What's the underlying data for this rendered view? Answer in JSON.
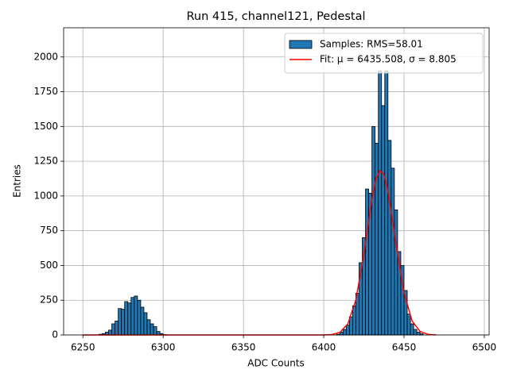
{
  "chart_data": {
    "type": "histogram",
    "title": "Run 415, channel121, Pedestal",
    "xlabel": "ADC Counts",
    "ylabel": "Entries",
    "name": "Samples: RMS=58.01",
    "color": "#1f77b4",
    "edgecolor": "#000000",
    "bins": [
      6260,
      6262,
      6264,
      6266,
      6268,
      6270,
      6272,
      6274,
      6276,
      6278,
      6280,
      6282,
      6284,
      6286,
      6288,
      6290,
      6292,
      6294,
      6296,
      6298,
      6300,
      6302,
      6304,
      6306,
      6308,
      6310,
      6312,
      6314,
      6316,
      6318,
      6320,
      6322,
      6324,
      6326,
      6328,
      6330,
      6332,
      6334,
      6336,
      6338,
      6340,
      6342,
      6344,
      6346,
      6348,
      6350,
      6352,
      6354,
      6356,
      6358,
      6360,
      6362,
      6364,
      6366,
      6368,
      6370,
      6372,
      6374,
      6376,
      6378,
      6380,
      6382,
      6384,
      6386,
      6388,
      6390,
      6392,
      6394,
      6396,
      6398,
      6400,
      6402,
      6404,
      6406,
      6408,
      6410,
      6412,
      6414,
      6416,
      6418,
      6420,
      6422,
      6424,
      6426,
      6428,
      6430,
      6432,
      6434,
      6436,
      6438,
      6440,
      6442,
      6444,
      6446,
      6448,
      6450,
      6452,
      6454,
      6456,
      6458,
      6460,
      6462
    ],
    "values": [
      5,
      10,
      20,
      35,
      80,
      100,
      190,
      185,
      240,
      230,
      270,
      280,
      250,
      200,
      160,
      110,
      80,
      60,
      25,
      10,
      3,
      0,
      0,
      0,
      0,
      0,
      0,
      0,
      0,
      0,
      0,
      0,
      0,
      0,
      0,
      0,
      0,
      0,
      0,
      0,
      0,
      0,
      0,
      0,
      0,
      0,
      0,
      0,
      0,
      0,
      0,
      0,
      0,
      0,
      0,
      0,
      0,
      0,
      0,
      0,
      0,
      0,
      0,
      0,
      0,
      0,
      0,
      0,
      0,
      0,
      0,
      0,
      0,
      0,
      5,
      20,
      40,
      70,
      130,
      210,
      300,
      520,
      700,
      1050,
      1020,
      1500,
      1380,
      1900,
      1650,
      1900,
      1400,
      1200,
      900,
      600,
      500,
      320,
      150,
      80,
      40,
      20,
      8
    ],
    "lines": [
      {
        "name": "Fit: μ = 6435.508, σ = 8.805",
        "color": "#ff0000",
        "x": [
          6250,
          6300,
          6400,
          6405,
          6410,
          6415,
          6420,
          6425,
          6430,
          6432.5,
          6435,
          6437.5,
          6440,
          6445,
          6450,
          6455,
          6460,
          6465,
          6470
        ],
        "values": [
          0,
          0,
          0.35,
          3,
          18,
          79,
          251,
          581,
          974,
          1118,
          1183,
          1155,
          1040,
          662,
          305,
          102,
          25,
          4,
          1
        ]
      }
    ],
    "xlim": [
      6238,
      6503
    ],
    "ylim": [
      0,
      2210
    ],
    "xticks": [
      6250,
      6300,
      6350,
      6400,
      6450,
      6500
    ],
    "yticks": [
      0,
      250,
      500,
      750,
      1000,
      1250,
      1500,
      1750,
      2000
    ],
    "grid": true,
    "legend": "upper right"
  }
}
